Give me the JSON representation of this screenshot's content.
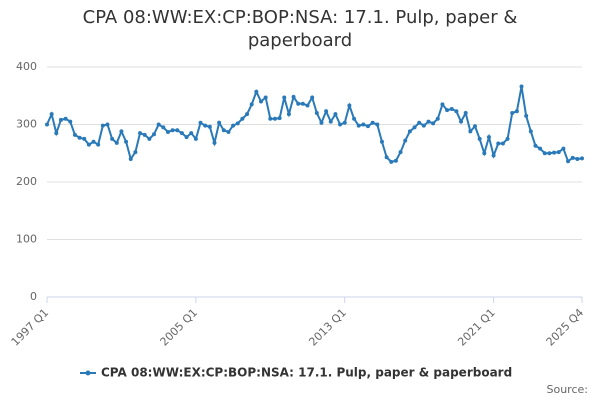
{
  "chart_data": {
    "type": "line",
    "title": "CPA 08:WW:EX:CP:BOP:NSA: 17.1. Pulp, paper & paperboard",
    "source": "Source:",
    "categories": [
      "1997 Q1",
      null,
      null,
      null,
      null,
      null,
      null,
      null,
      null,
      null,
      null,
      null,
      null,
      null,
      null,
      null,
      null,
      null,
      null,
      null,
      null,
      null,
      null,
      null,
      null,
      null,
      null,
      null,
      null,
      null,
      null,
      null,
      "2005 Q1",
      null,
      null,
      null,
      null,
      null,
      null,
      null,
      null,
      null,
      null,
      null,
      null,
      null,
      null,
      null,
      null,
      null,
      null,
      null,
      null,
      null,
      null,
      null,
      null,
      null,
      null,
      null,
      null,
      null,
      null,
      null,
      "2013 Q1",
      null,
      null,
      null,
      null,
      null,
      null,
      null,
      null,
      null,
      null,
      null,
      null,
      null,
      null,
      null,
      null,
      null,
      null,
      null,
      null,
      null,
      null,
      null,
      null,
      null,
      null,
      null,
      null,
      null,
      null,
      null,
      "2021 Q1",
      null,
      null,
      null,
      null,
      null,
      null,
      null,
      null,
      null,
      null,
      null,
      null,
      null,
      null,
      null,
      null,
      null,
      null,
      "2025 Q4"
    ],
    "series": [
      {
        "name": "CPA 08:WW:EX:CP:BOP:NSA: 17.1. Pulp, paper & paperboard",
        "color": "#2a7ab9",
        "values": [
          300,
          318,
          285,
          308,
          310,
          305,
          282,
          277,
          275,
          265,
          270,
          265,
          298,
          300,
          275,
          268,
          288,
          270,
          240,
          252,
          285,
          282,
          275,
          283,
          300,
          295,
          287,
          290,
          290,
          285,
          278,
          285,
          275,
          303,
          298,
          296,
          268,
          303,
          290,
          287,
          298,
          302,
          310,
          318,
          335,
          357,
          340,
          347,
          310,
          310,
          311,
          347,
          318,
          348,
          336,
          336,
          333,
          347,
          320,
          303,
          323,
          305,
          318,
          300,
          303,
          333,
          310,
          298,
          300,
          297,
          303,
          300,
          270,
          243,
          235,
          237,
          252,
          272,
          288,
          295,
          303,
          298,
          305,
          302,
          310,
          335,
          325,
          327,
          323,
          305,
          320,
          288,
          297,
          275,
          250,
          278,
          246,
          267,
          267,
          275,
          320,
          323,
          366,
          315,
          288,
          263,
          258,
          250,
          250,
          251,
          252,
          258,
          236,
          242,
          240,
          241
        ]
      }
    ],
    "ylim": [
      0,
      400
    ],
    "yticks": [
      0,
      100,
      200,
      300,
      400
    ],
    "grid": true
  }
}
